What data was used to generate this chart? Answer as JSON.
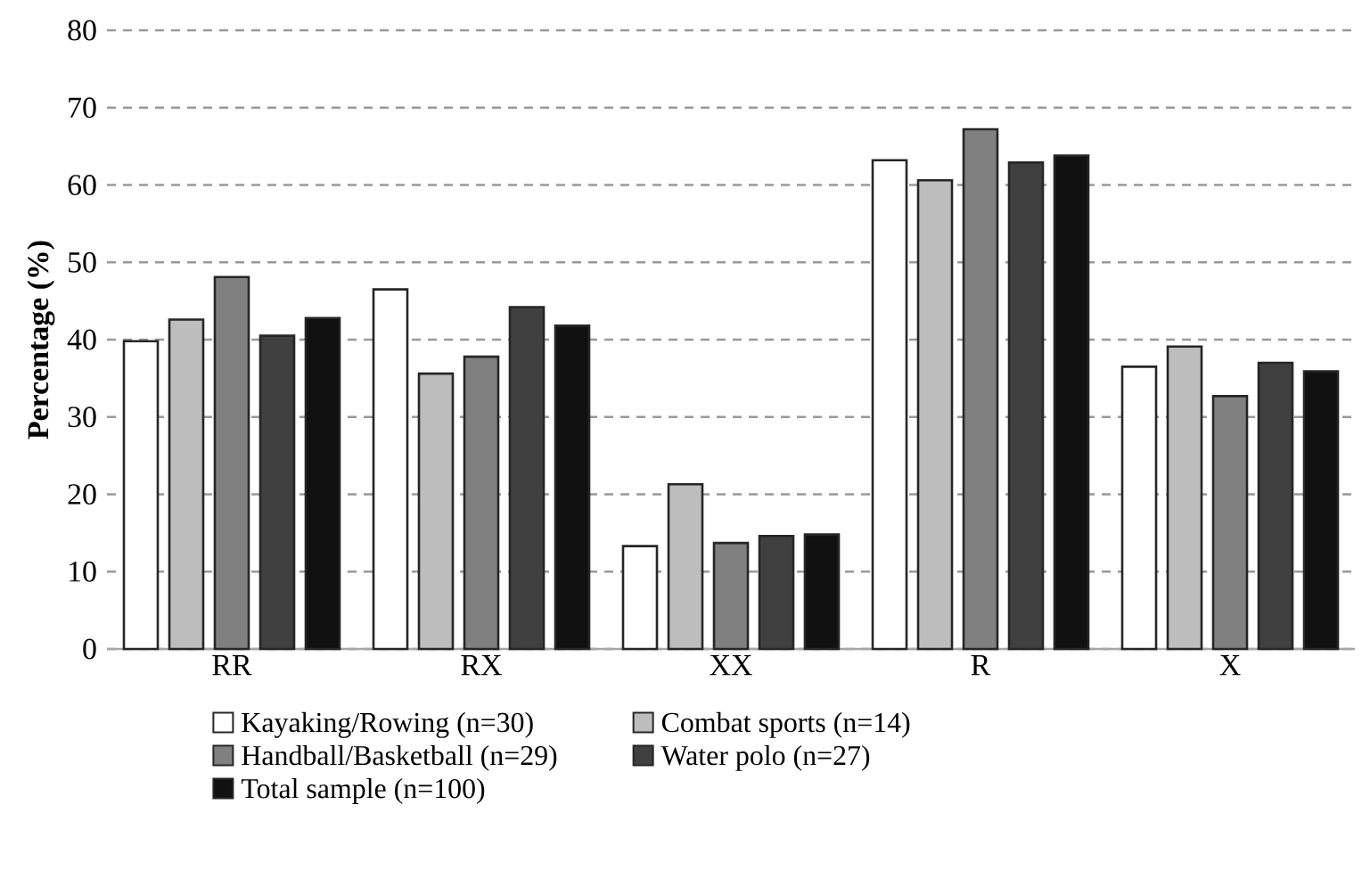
{
  "chart_data": {
    "type": "bar",
    "ylabel": "Percentage (%)",
    "categories": [
      "RR",
      "RX",
      "XX",
      "R",
      "X"
    ],
    "series": [
      {
        "name": "Kayaking/Rowing (n=30)",
        "color": "#ffffff",
        "values": [
          39.8,
          46.5,
          13.3,
          63.2,
          36.5
        ]
      },
      {
        "name": "Combat sports (n=14)",
        "color": "#bdbdbd",
        "values": [
          42.6,
          35.6,
          21.3,
          60.6,
          39.1
        ]
      },
      {
        "name": "Handball/Basketball (n=29)",
        "color": "#808080",
        "values": [
          48.1,
          37.8,
          13.7,
          67.2,
          32.7
        ]
      },
      {
        "name": "Water polo (n=27)",
        "color": "#404040",
        "values": [
          40.5,
          44.2,
          14.6,
          62.9,
          37.0
        ]
      },
      {
        "name": "Total sample (n=100)",
        "color": "#111111",
        "values": [
          42.8,
          41.8,
          14.8,
          63.8,
          35.9
        ]
      }
    ],
    "ylim": [
      0,
      80
    ],
    "yticks": [
      0,
      10,
      20,
      30,
      40,
      50,
      60,
      70,
      80
    ],
    "grid": "y",
    "legend": "bottom"
  }
}
